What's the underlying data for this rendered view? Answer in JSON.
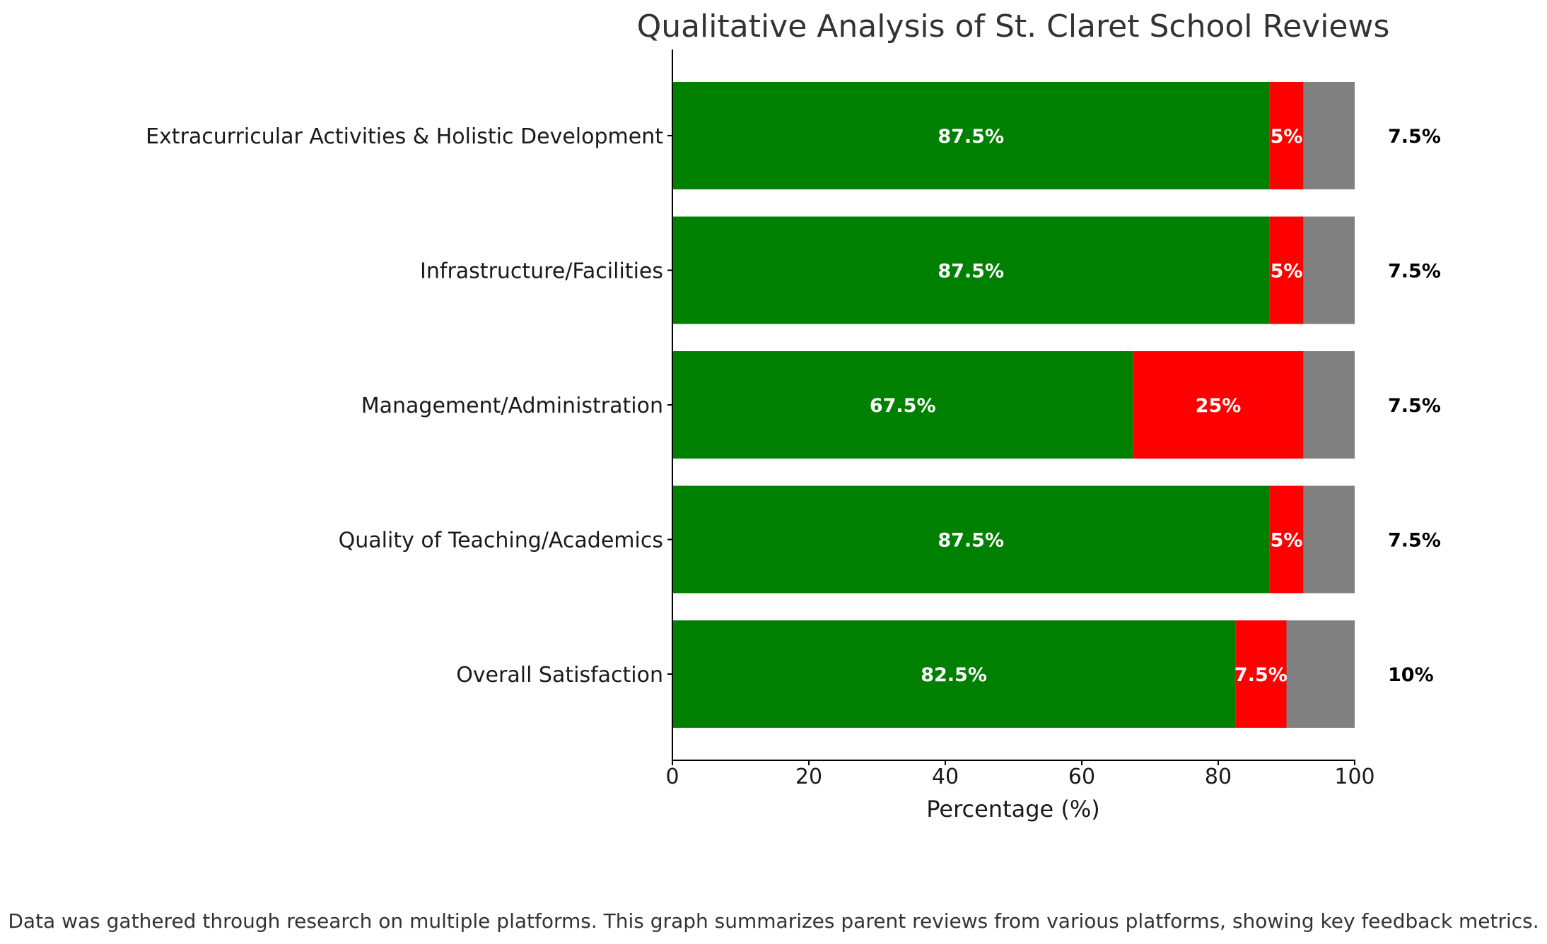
{
  "chart_data": {
    "type": "bar",
    "orientation": "horizontal",
    "stacked": true,
    "title": "Qualitative Analysis of St. Claret School Reviews",
    "xlabel": "Percentage (%)",
    "ylabel": "",
    "xlim": [
      0,
      100
    ],
    "xticks": [
      "0",
      "20",
      "40",
      "60",
      "80",
      "100"
    ],
    "categories": [
      "Overall Satisfaction",
      "Quality of Teaching/Academics",
      "Management/Administration",
      "Infrastructure/Facilities",
      "Extracurricular Activities & Holistic Development"
    ],
    "series": [
      {
        "color": "#008000",
        "values": [
          82.5,
          87.5,
          67.5,
          87.5,
          87.5
        ]
      },
      {
        "color": "#ff0000",
        "values": [
          7.5,
          5,
          25,
          5,
          5
        ]
      },
      {
        "color": "#808080",
        "values": [
          10,
          7.5,
          7.5,
          7.5,
          7.5
        ]
      }
    ],
    "labels": {
      "first": [
        "82.5%",
        "87.5%",
        "67.5%",
        "87.5%",
        "87.5%"
      ],
      "second": [
        "7.5%",
        "5%",
        "25%",
        "5%",
        "5%"
      ],
      "third": [
        "10%",
        "7.5%",
        "7.5%",
        "7.5%",
        "7.5%"
      ]
    },
    "grid": false,
    "legend": "none"
  },
  "footnote": "Data was gathered through research on multiple platforms. This graph summarizes parent reviews from various platforms, showing key feedback metrics."
}
